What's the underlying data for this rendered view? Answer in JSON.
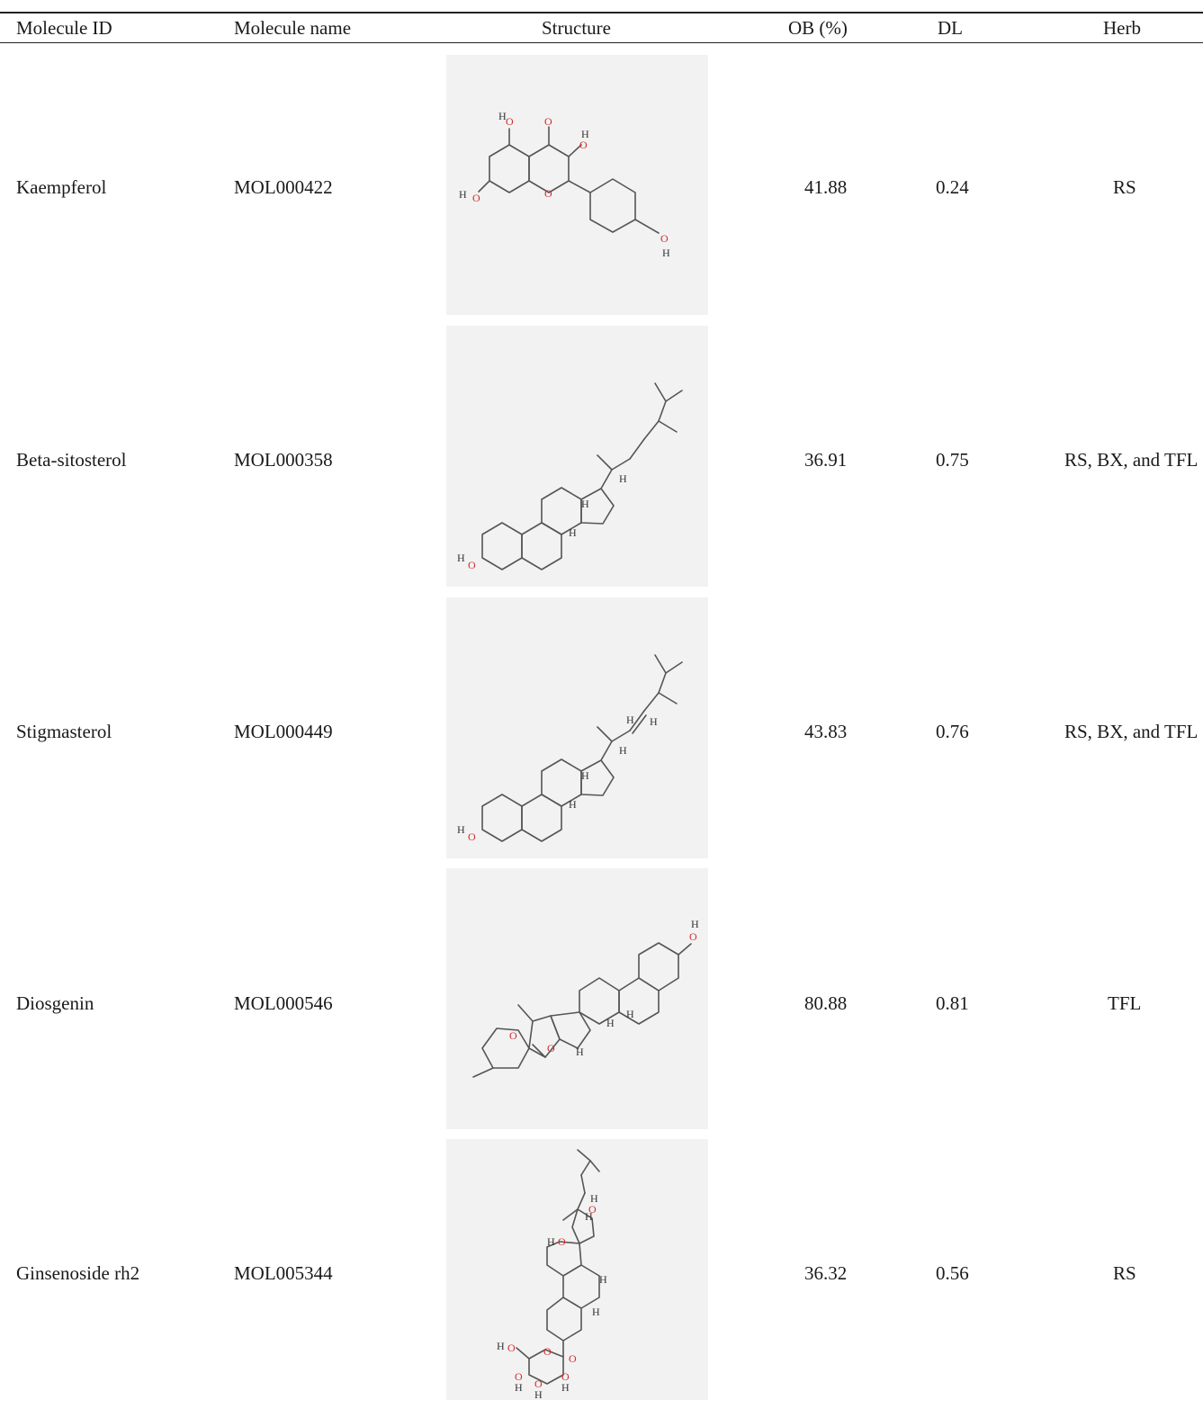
{
  "table": {
    "headers": {
      "molecule_id": "Molecule ID",
      "molecule_name": "Molecule name",
      "structure": "Structure",
      "ob": "OB (%)",
      "dl": "DL",
      "herb": "Herb"
    },
    "rows": [
      {
        "molecule_id": "Kaempferol",
        "molecule_name": "MOL000422",
        "structure_icon": "kaempferol-structure",
        "ob": "41.88",
        "dl": "0.24",
        "herb": "RS"
      },
      {
        "molecule_id": "Beta-sitosterol",
        "molecule_name": "MOL000358",
        "structure_icon": "beta-sitosterol-structure",
        "ob": "36.91",
        "dl": "0.75",
        "herb": "RS, BX, and TFL"
      },
      {
        "molecule_id": "Stigmasterol",
        "molecule_name": "MOL000449",
        "structure_icon": "stigmasterol-structure",
        "ob": "43.83",
        "dl": "0.76",
        "herb": "RS, BX, and TFL"
      },
      {
        "molecule_id": "Diosgenin",
        "molecule_name": "MOL000546",
        "structure_icon": "diosgenin-structure",
        "ob": "80.88",
        "dl": "0.81",
        "herb": "TFL"
      },
      {
        "molecule_id": "Ginsenoside rh2",
        "molecule_name": "MOL005344",
        "structure_icon": "ginsenoside-rh2-structure",
        "ob": "36.32",
        "dl": "0.56",
        "herb": "RS"
      }
    ]
  },
  "atom_labels": {
    "hydrogen": "H",
    "oxygen": "O"
  }
}
